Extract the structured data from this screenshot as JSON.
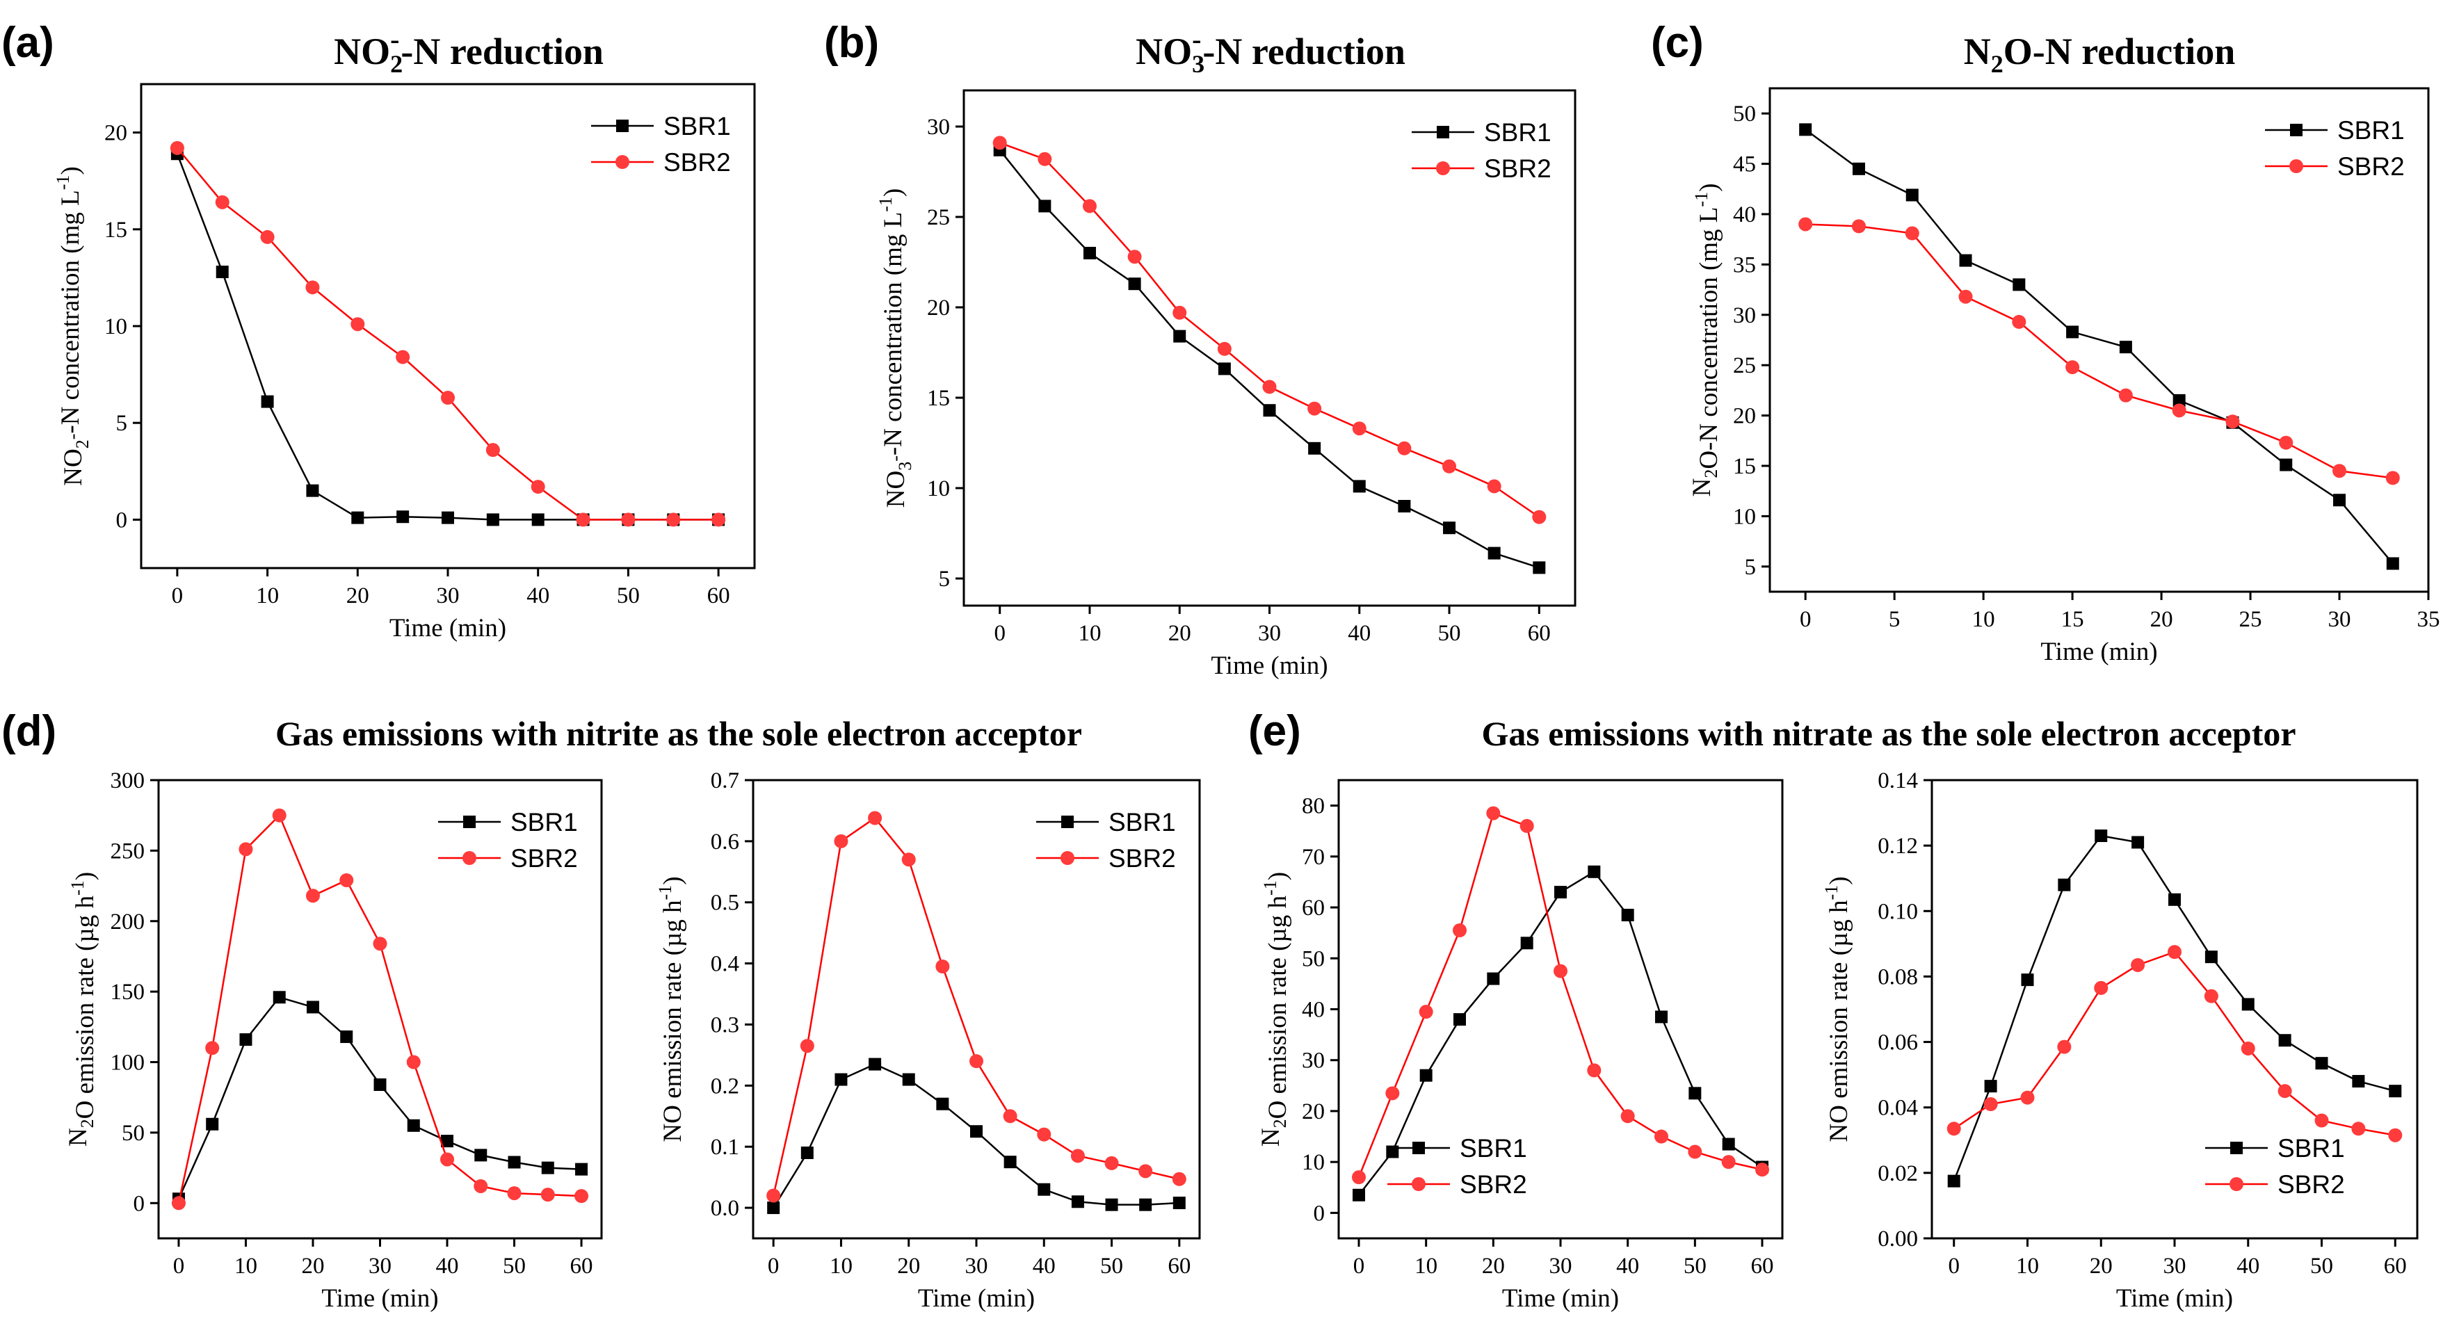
{
  "colors": {
    "series_1": "#000000",
    "series_2": "#ff0000",
    "marker_2_fill": "#ff3b3b"
  },
  "groups": [
    {
      "letter": "(d)",
      "title": "Gas emissions with nitrite as the sole electron acceptor"
    },
    {
      "letter": "(e)",
      "title": "Gas emissions with nitrate as the sole electron acceptor"
    }
  ],
  "chart_data": [
    {
      "id": "a",
      "type": "line",
      "letter": "(a)",
      "title": {
        "pre": "NO",
        "sub": "2",
        "sup": "-",
        "post": "-N reduction"
      },
      "xlabel": "Time (min)",
      "ylabel": {
        "pre": "NO",
        "sub": "2",
        "sup": "-",
        "mid": "-N concentration (mg L",
        "sup2": "-1",
        "post": ")"
      },
      "xlim": [
        -4,
        64
      ],
      "ylim": [
        -2.5,
        22.5
      ],
      "xticks": [
        0,
        10,
        20,
        30,
        40,
        50,
        60
      ],
      "yticks": [
        0,
        5,
        10,
        15,
        20
      ],
      "decimals": 0,
      "legend": "top-right",
      "series": [
        {
          "name": "SBR1",
          "x": [
            0,
            5,
            10,
            15,
            20,
            25,
            30,
            35,
            40,
            45,
            50,
            55,
            60
          ],
          "y": [
            18.9,
            12.8,
            6.1,
            1.5,
            0.1,
            0.15,
            0.1,
            0.0,
            0.0,
            0.0,
            0.0,
            0.0,
            0.0
          ]
        },
        {
          "name": "SBR2",
          "x": [
            0,
            5,
            10,
            15,
            20,
            25,
            30,
            35,
            40,
            45,
            50,
            55,
            60
          ],
          "y": [
            19.2,
            16.4,
            14.6,
            12.0,
            10.1,
            8.4,
            6.3,
            3.6,
            1.7,
            0.0,
            0.0,
            0.0,
            0.0
          ]
        }
      ]
    },
    {
      "id": "b",
      "type": "line",
      "letter": "(b)",
      "title": {
        "pre": "NO",
        "sub": "3",
        "sup": "-",
        "post": "-N reduction"
      },
      "xlabel": "Time (min)",
      "ylabel": {
        "pre": "NO",
        "sub": "3",
        "sup": "-",
        "mid": "-N concentration (mg L",
        "sup2": "-1",
        "post": ")"
      },
      "xlim": [
        -4,
        64
      ],
      "ylim": [
        3.5,
        32
      ],
      "xticks": [
        0,
        10,
        20,
        30,
        40,
        50,
        60
      ],
      "yticks": [
        5,
        10,
        15,
        20,
        25,
        30
      ],
      "decimals": 0,
      "legend": "top-right",
      "series": [
        {
          "name": "SBR1",
          "x": [
            0,
            5,
            10,
            15,
            20,
            25,
            30,
            35,
            40,
            45,
            50,
            55,
            60
          ],
          "y": [
            28.7,
            25.6,
            23.0,
            21.3,
            18.4,
            16.6,
            14.3,
            12.2,
            10.1,
            9.0,
            7.8,
            6.4,
            5.6
          ]
        },
        {
          "name": "SBR2",
          "x": [
            0,
            5,
            10,
            15,
            20,
            25,
            30,
            35,
            40,
            45,
            50,
            55,
            60
          ],
          "y": [
            29.1,
            28.2,
            25.6,
            22.8,
            19.7,
            17.7,
            15.6,
            14.4,
            13.3,
            12.2,
            11.2,
            10.1,
            8.4
          ]
        }
      ]
    },
    {
      "id": "c",
      "type": "line",
      "letter": "(c)",
      "title": {
        "pre": "N",
        "sub": "2",
        "post": "O-N reduction"
      },
      "xlabel": "Time (min)",
      "ylabel": {
        "pre": "N",
        "sub": "2",
        "mid": "O-N concentration (mg L",
        "sup2": "-1",
        "post": ")"
      },
      "xlim": [
        -2,
        35
      ],
      "ylim": [
        2.5,
        52.5
      ],
      "xticks": [
        0,
        5,
        10,
        15,
        20,
        25,
        30,
        35
      ],
      "yticks": [
        5,
        10,
        15,
        20,
        25,
        30,
        35,
        40,
        45,
        50
      ],
      "decimals": 0,
      "legend": "top-right",
      "series": [
        {
          "name": "SBR1",
          "x": [
            0,
            3,
            6,
            9,
            12,
            15,
            18,
            21,
            24,
            27,
            30,
            33
          ],
          "y": [
            48.4,
            44.5,
            41.9,
            35.4,
            33.0,
            28.3,
            26.8,
            21.5,
            19.3,
            15.1,
            11.6,
            5.3
          ]
        },
        {
          "name": "SBR2",
          "x": [
            0,
            3,
            6,
            9,
            12,
            15,
            18,
            21,
            24,
            27,
            30,
            33
          ],
          "y": [
            39.0,
            38.8,
            38.1,
            31.8,
            29.3,
            24.8,
            22.0,
            20.5,
            19.4,
            17.3,
            14.5,
            13.8
          ]
        }
      ]
    },
    {
      "id": "d1",
      "type": "line",
      "xlabel": "Time (min)",
      "ylabel": {
        "pre": "N",
        "sub": "2",
        "mid": "O emission rate (µg h",
        "sup2": "-1",
        "post": ")"
      },
      "xlim": [
        -3,
        63
      ],
      "ylim": [
        -25,
        300
      ],
      "xticks": [
        0,
        10,
        20,
        30,
        40,
        50,
        60
      ],
      "yticks": [
        0,
        50,
        100,
        150,
        200,
        250,
        300
      ],
      "decimals": 0,
      "legend": "top-right",
      "series": [
        {
          "name": "SBR1",
          "x": [
            0,
            5,
            10,
            15,
            20,
            25,
            30,
            35,
            40,
            45,
            50,
            55,
            60
          ],
          "y": [
            3,
            56,
            116,
            146,
            139,
            118,
            84,
            55,
            44,
            34,
            29,
            25,
            24
          ]
        },
        {
          "name": "SBR2",
          "x": [
            0,
            5,
            10,
            15,
            20,
            25,
            30,
            35,
            40,
            45,
            50,
            55,
            60
          ],
          "y": [
            0,
            110,
            251,
            275,
            218,
            229,
            184,
            100,
            31,
            12,
            7,
            6,
            5
          ]
        }
      ]
    },
    {
      "id": "d2",
      "type": "line",
      "xlabel": "Time (min)",
      "ylabel": {
        "pre": "NO emission rate (µg h",
        "sup2": "-1",
        "post": ")"
      },
      "xlim": [
        -3,
        63
      ],
      "ylim": [
        -0.05,
        0.7
      ],
      "xticks": [
        0,
        10,
        20,
        30,
        40,
        50,
        60
      ],
      "yticks": [
        0.0,
        0.1,
        0.2,
        0.3,
        0.4,
        0.5,
        0.6,
        0.7
      ],
      "decimals": 1,
      "legend": "top-right",
      "series": [
        {
          "name": "SBR1",
          "x": [
            0,
            5,
            10,
            15,
            20,
            25,
            30,
            35,
            40,
            45,
            50,
            55,
            60
          ],
          "y": [
            0.0,
            0.09,
            0.21,
            0.235,
            0.21,
            0.17,
            0.125,
            0.075,
            0.03,
            0.01,
            0.005,
            0.005,
            0.008
          ]
        },
        {
          "name": "SBR2",
          "x": [
            0,
            5,
            10,
            15,
            20,
            25,
            30,
            35,
            40,
            45,
            50,
            55,
            60
          ],
          "y": [
            0.02,
            0.265,
            0.6,
            0.638,
            0.57,
            0.395,
            0.24,
            0.15,
            0.12,
            0.085,
            0.073,
            0.06,
            0.047
          ]
        }
      ]
    },
    {
      "id": "e1",
      "type": "line",
      "xlabel": "Time (min)",
      "ylabel": {
        "pre": "N",
        "sub": "2",
        "mid": "O emission rate (µg h",
        "sup2": "-1",
        "post": ")"
      },
      "xlim": [
        -3,
        63
      ],
      "ylim": [
        -5,
        85
      ],
      "xticks": [
        0,
        10,
        20,
        30,
        40,
        50,
        60
      ],
      "yticks": [
        0,
        10,
        20,
        30,
        40,
        50,
        60,
        70,
        80
      ],
      "decimals": 0,
      "legend": "bottom-left",
      "series": [
        {
          "name": "SBR1",
          "x": [
            0,
            5,
            10,
            15,
            20,
            25,
            30,
            35,
            40,
            45,
            50,
            55,
            60
          ],
          "y": [
            3.5,
            12,
            27,
            38,
            46,
            53,
            63,
            67,
            58.5,
            38.5,
            23.5,
            13.5,
            9
          ]
        },
        {
          "name": "SBR2",
          "x": [
            0,
            5,
            10,
            15,
            20,
            25,
            30,
            35,
            40,
            45,
            50,
            55,
            60
          ],
          "y": [
            7,
            23.5,
            39.5,
            55.5,
            78.5,
            76,
            47.5,
            28,
            19,
            15,
            12,
            10,
            8.5
          ]
        }
      ]
    },
    {
      "id": "e2",
      "type": "line",
      "xlabel": "Time (min)",
      "ylabel": {
        "pre": "NO emission rate (µg h",
        "sup2": "-1",
        "post": ")"
      },
      "xlim": [
        -3,
        63
      ],
      "ylim": [
        0.0,
        0.14
      ],
      "xticks": [
        0,
        10,
        20,
        30,
        40,
        50,
        60
      ],
      "yticks": [
        0.0,
        0.02,
        0.04,
        0.06,
        0.08,
        0.1,
        0.12,
        0.14
      ],
      "decimals": 2,
      "legend": "bottom-right",
      "series": [
        {
          "name": "SBR1",
          "x": [
            0,
            5,
            10,
            15,
            20,
            25,
            30,
            35,
            40,
            45,
            50,
            55,
            60
          ],
          "y": [
            0.0175,
            0.0465,
            0.079,
            0.108,
            0.123,
            0.121,
            0.1035,
            0.086,
            0.0715,
            0.0605,
            0.0535,
            0.048,
            0.045
          ]
        },
        {
          "name": "SBR2",
          "x": [
            0,
            5,
            10,
            15,
            20,
            25,
            30,
            35,
            40,
            45,
            50,
            55,
            60
          ],
          "y": [
            0.0335,
            0.041,
            0.043,
            0.0585,
            0.0765,
            0.0835,
            0.0875,
            0.074,
            0.058,
            0.045,
            0.036,
            0.0335,
            0.0315
          ]
        }
      ]
    }
  ]
}
